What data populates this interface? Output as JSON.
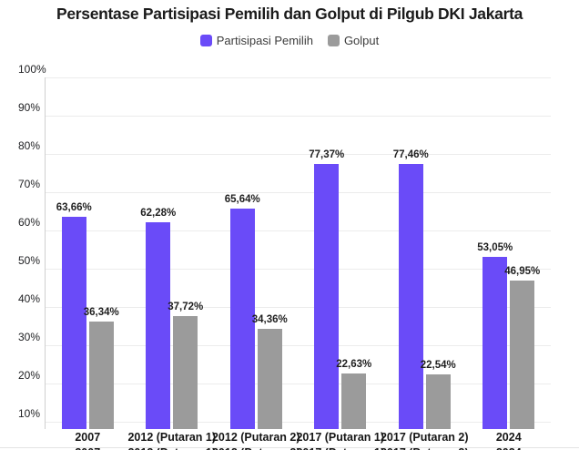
{
  "chart_data": {
    "type": "bar",
    "title": "Persentase Partisipasi Pemilih dan Golput di Pilgub DKI Jakarta",
    "categories": [
      "2007",
      "2012 (Putaran 1)",
      "2012 (Putaran 2)",
      "2017 (Putaran 1)",
      "2017 (Putaran 2)",
      "2024"
    ],
    "series": [
      {
        "name": "Partisipasi Pemilih",
        "color": "#6a4bf8",
        "values": [
          63.66,
          62.28,
          65.64,
          77.37,
          77.46,
          53.05
        ],
        "value_labels": [
          "63,66%",
          "62,28%",
          "65,64%",
          "77,37%",
          "77,46%",
          "53,05%"
        ]
      },
      {
        "name": "Golput",
        "color": "#9b9b9b",
        "values": [
          36.34,
          37.72,
          34.36,
          22.63,
          22.54,
          46.95
        ],
        "value_labels": [
          "36,34%",
          "37,72%",
          "34,36%",
          "22,63%",
          "22,54%",
          "46,95%"
        ]
      }
    ],
    "y_ticks": [
      "10%",
      "20%",
      "30%",
      "40%",
      "50%",
      "60%",
      "70%",
      "80%",
      "90%",
      "100%"
    ],
    "y_tick_values": [
      10,
      20,
      30,
      40,
      50,
      60,
      70,
      80,
      90,
      100
    ],
    "ylim": [
      8.2,
      100
    ],
    "xlabel": "",
    "ylabel": "",
    "grid": true,
    "legend_position": "top",
    "background": "#ffffff",
    "gridline_color": "#ececec",
    "axis_line_color": "#cfcfcf"
  }
}
